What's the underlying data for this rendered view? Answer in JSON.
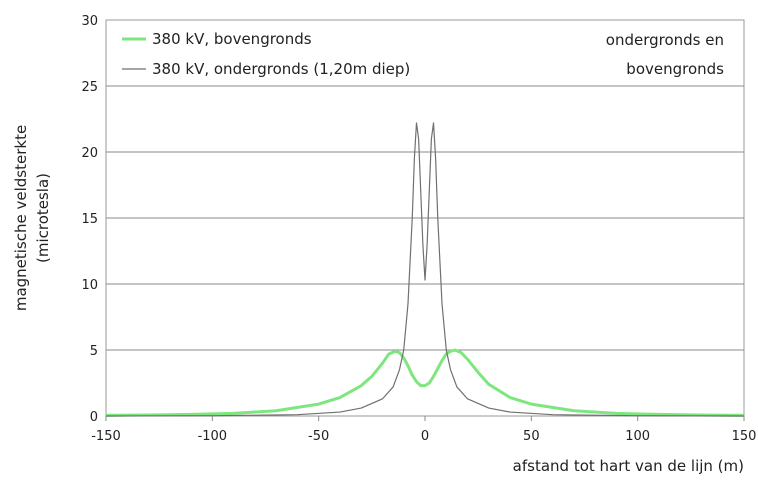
{
  "chart_data": {
    "type": "line",
    "title": "",
    "xlabel": "afstand tot hart van de lijn (m)",
    "ylabel_line1": "magnetische veldsterkte",
    "ylabel_line2": "(microtesla)",
    "xlim": [
      -150,
      150
    ],
    "ylim": [
      0,
      30
    ],
    "xticks": [
      -150,
      -100,
      -50,
      0,
      50,
      100,
      150
    ],
    "yticks": [
      0,
      5,
      10,
      15,
      20,
      25,
      30
    ],
    "grid": "horizontal",
    "legend_position": "top-left",
    "annotation_line1": "ondergronds en",
    "annotation_line2": "bovengronds",
    "series": [
      {
        "name": "380 kV, bovengronds",
        "color": "#7ee67e",
        "x": [
          -150,
          -130,
          -110,
          -90,
          -70,
          -50,
          -40,
          -30,
          -25,
          -20,
          -17,
          -14,
          -12,
          -10,
          -8,
          -6,
          -4,
          -2,
          0,
          2,
          4,
          6,
          8,
          10,
          12,
          14,
          17,
          20,
          25,
          30,
          40,
          50,
          70,
          90,
          110,
          130,
          150
        ],
        "y": [
          0.05,
          0.08,
          0.12,
          0.2,
          0.4,
          0.9,
          1.4,
          2.3,
          3.0,
          4.0,
          4.7,
          4.9,
          4.8,
          4.4,
          3.8,
          3.1,
          2.6,
          2.3,
          2.3,
          2.5,
          3.0,
          3.6,
          4.2,
          4.7,
          4.9,
          5.0,
          4.8,
          4.3,
          3.3,
          2.4,
          1.4,
          0.9,
          0.4,
          0.2,
          0.12,
          0.08,
          0.05
        ]
      },
      {
        "name": "380 kV, ondergronds (1,20m diep)",
        "color": "#707070",
        "x": [
          -150,
          -100,
          -60,
          -40,
          -30,
          -20,
          -15,
          -12,
          -10,
          -8,
          -6,
          -5,
          -4,
          -3,
          -2,
          -1,
          0,
          1,
          2,
          3,
          4,
          5,
          6,
          8,
          10,
          12,
          15,
          20,
          30,
          40,
          60,
          100,
          150
        ],
        "y": [
          0.0,
          0.02,
          0.1,
          0.3,
          0.6,
          1.3,
          2.2,
          3.5,
          5.0,
          8.5,
          15.0,
          19.5,
          22.2,
          21.0,
          17.0,
          13.0,
          10.3,
          13.0,
          17.0,
          21.0,
          22.2,
          19.5,
          15.0,
          8.5,
          5.0,
          3.5,
          2.2,
          1.3,
          0.6,
          0.3,
          0.1,
          0.02,
          0.0
        ]
      }
    ]
  }
}
